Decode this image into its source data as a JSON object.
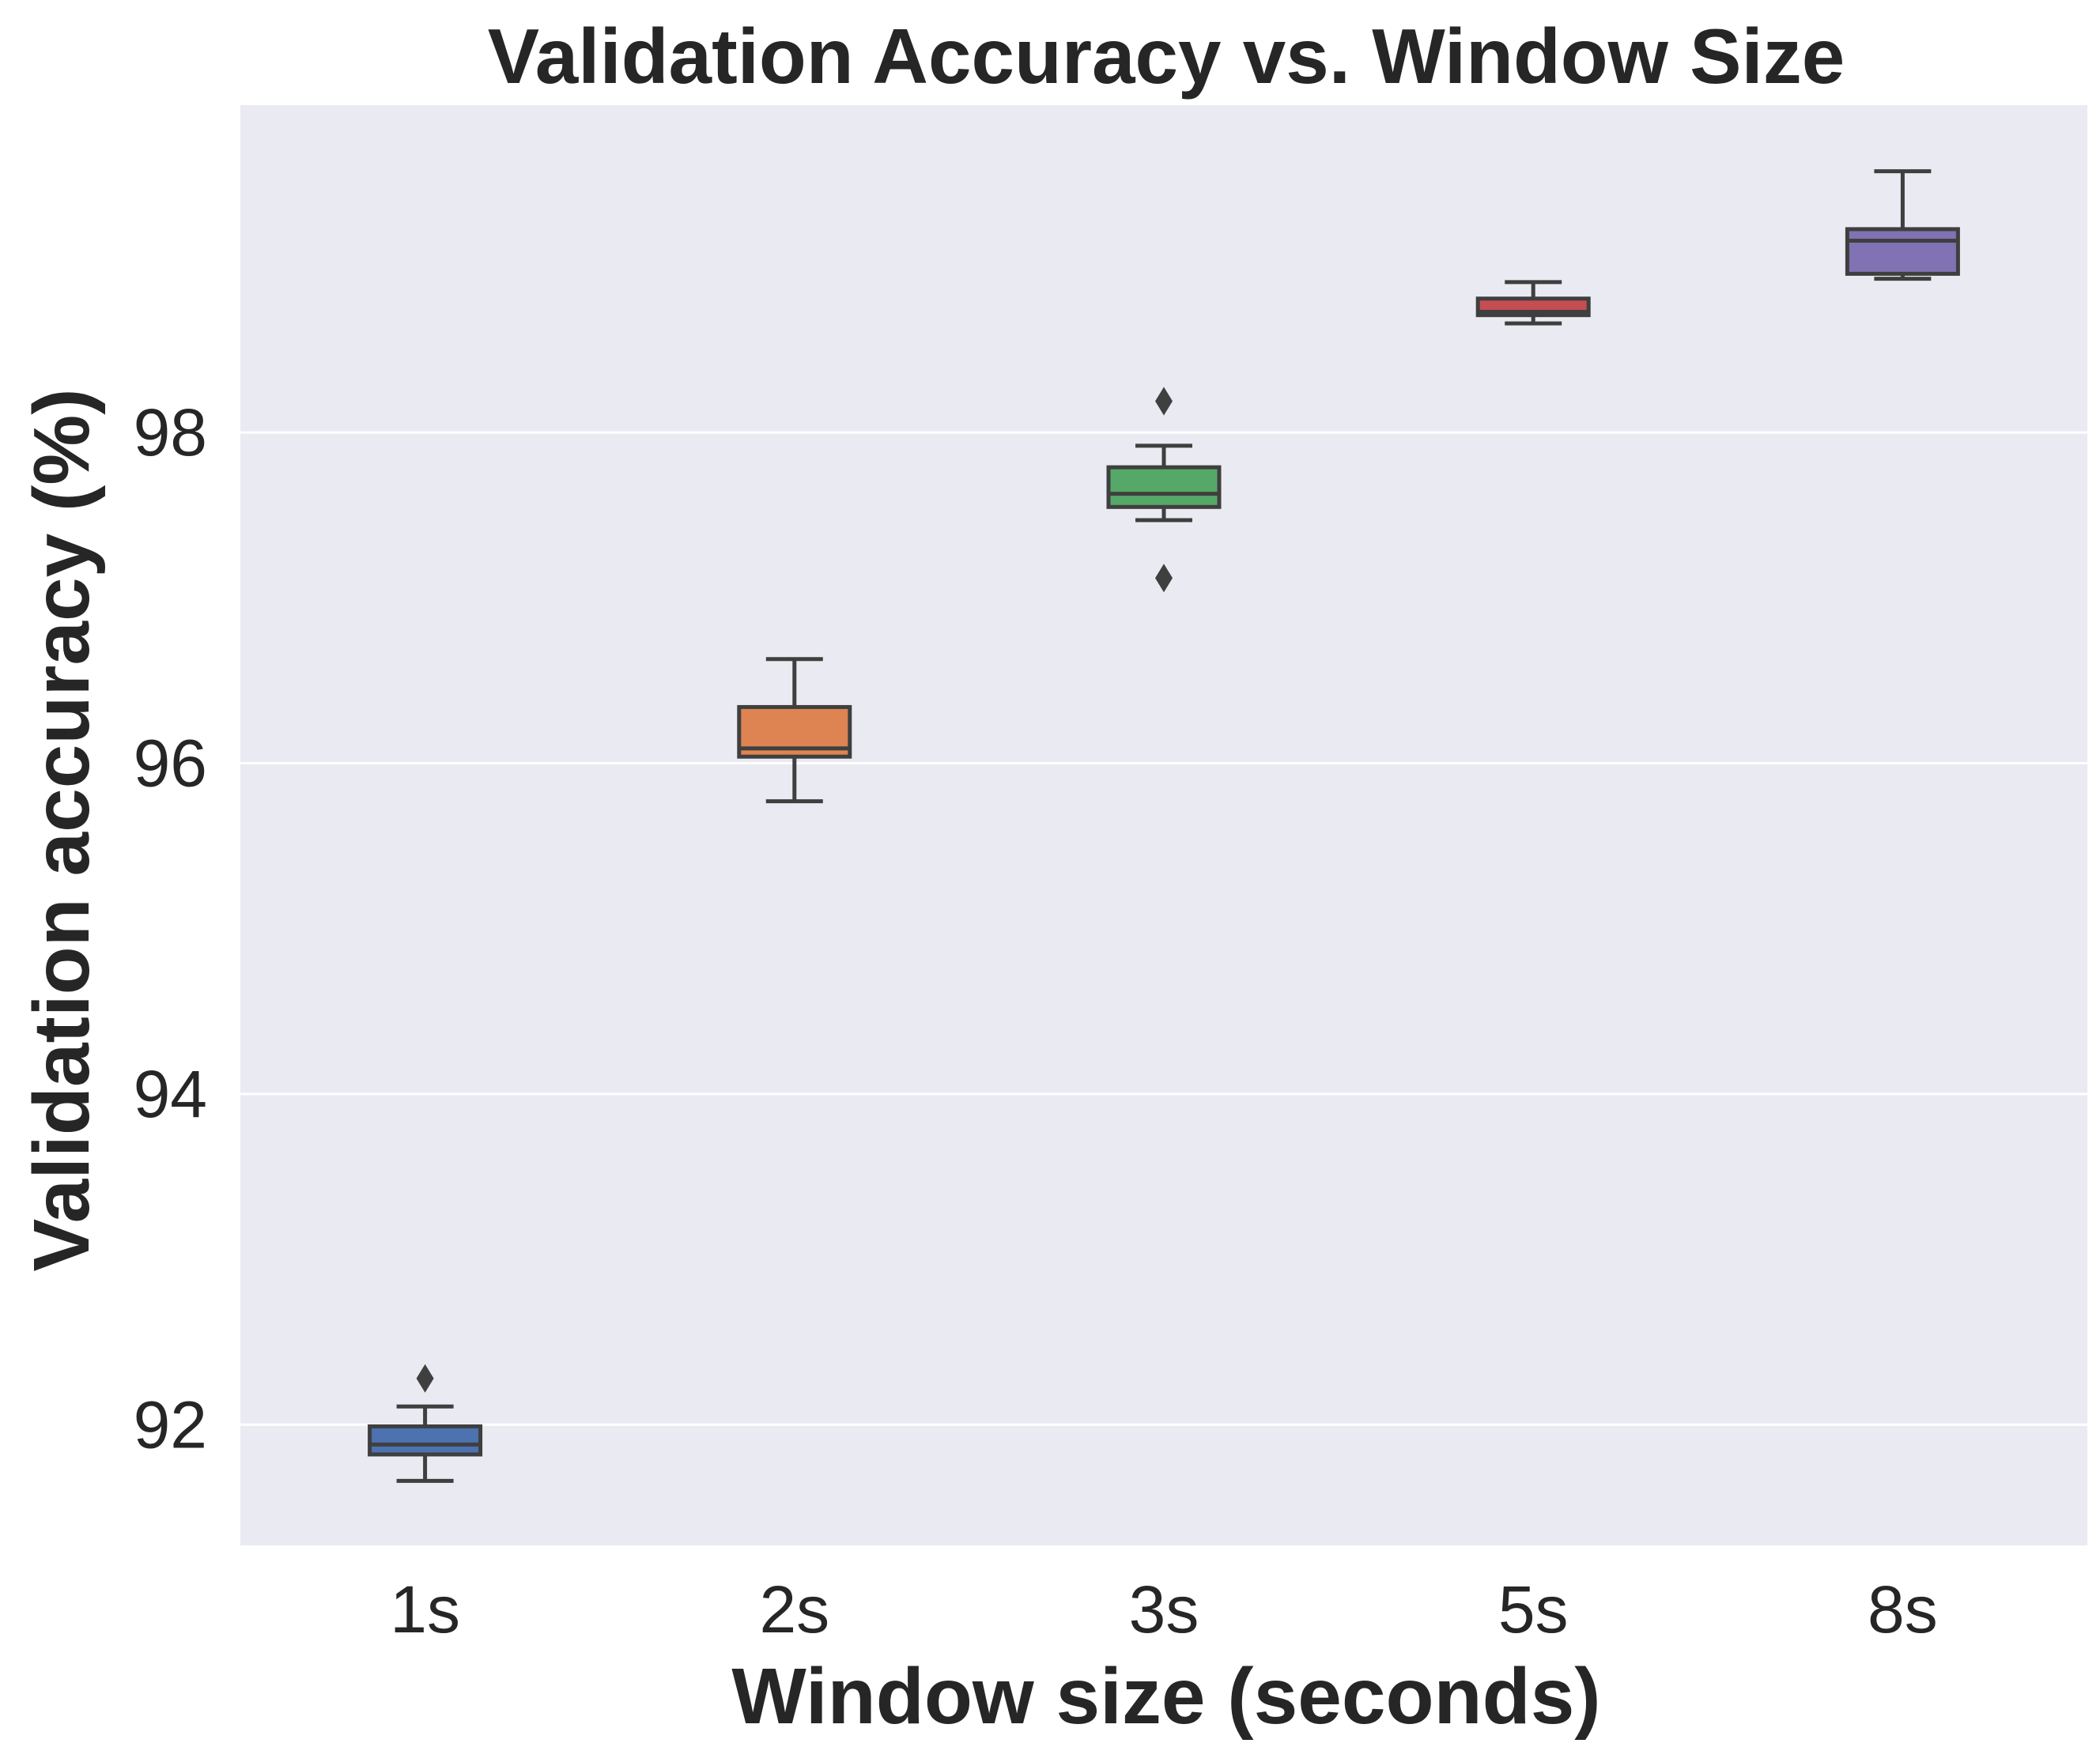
{
  "chart_data": {
    "type": "box",
    "title": "Validation Accuracy vs. Window Size",
    "xlabel": "Window size (seconds)",
    "ylabel": "Validation accuracy (%)",
    "categories": [
      "1s",
      "2s",
      "3s",
      "5s",
      "8s"
    ],
    "yticks": [
      "92",
      "94",
      "96",
      "98"
    ],
    "ylim": [
      91.27,
      99.98
    ],
    "grid": true,
    "colors": {
      "background": "#EAEAF2",
      "grid": "#FFFFFF",
      "edge": "#3F3F3F",
      "boxes": [
        "#4C72B0",
        "#DD8452",
        "#55A868",
        "#C44E52",
        "#8172B3"
      ]
    },
    "boxes": [
      {
        "category": "1s",
        "whisker_low": 91.66,
        "q1": 91.82,
        "median": 91.88,
        "q3": 91.99,
        "whisker_high": 92.11,
        "outliers": [
          92.28
        ]
      },
      {
        "category": "2s",
        "whisker_low": 95.77,
        "q1": 96.04,
        "median": 96.09,
        "q3": 96.34,
        "whisker_high": 96.63,
        "outliers": []
      },
      {
        "category": "3s",
        "whisker_low": 97.47,
        "q1": 97.55,
        "median": 97.63,
        "q3": 97.79,
        "whisker_high": 97.92,
        "outliers": [
          98.19,
          97.12
        ]
      },
      {
        "category": "5s",
        "whisker_low": 98.66,
        "q1": 98.71,
        "median": 98.73,
        "q3": 98.81,
        "whisker_high": 98.91,
        "outliers": []
      },
      {
        "category": "8s",
        "whisker_low": 98.93,
        "q1": 98.96,
        "median": 99.16,
        "q3": 99.23,
        "whisker_high": 99.58,
        "outliers": []
      }
    ]
  }
}
